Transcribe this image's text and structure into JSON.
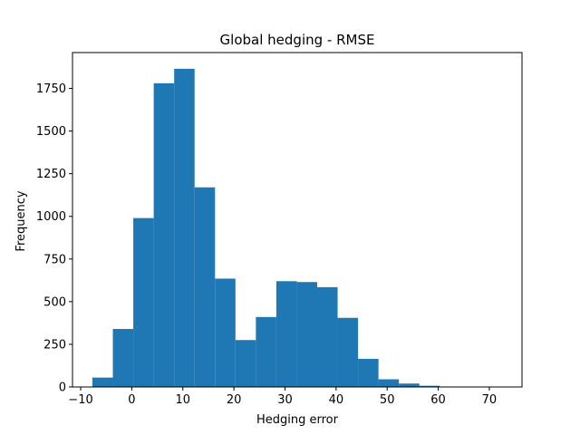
{
  "chart_data": {
    "type": "bar",
    "title": "Global hedging - RMSE",
    "xlabel": "Hedging error",
    "ylabel": "Frequency",
    "xlim": [
      -11.6,
      76.4
    ],
    "ylim": [
      0,
      1960
    ],
    "bin_edges": [
      -7.7,
      -3.7,
      0.3,
      4.3,
      8.3,
      12.3,
      16.3,
      20.3,
      24.3,
      28.3,
      32.3,
      36.3,
      40.3,
      44.3,
      48.3,
      52.3,
      56.3,
      60.3,
      64.3,
      68.3,
      72.3
    ],
    "values": [
      55,
      340,
      990,
      1780,
      1865,
      1170,
      635,
      275,
      410,
      620,
      615,
      585,
      405,
      165,
      45,
      20,
      7,
      2,
      1,
      1
    ],
    "x_ticks": [
      -10,
      0,
      10,
      20,
      30,
      40,
      50,
      60,
      70
    ],
    "x_tick_labels": [
      "−10",
      "0",
      "10",
      "20",
      "30",
      "40",
      "50",
      "60",
      "70"
    ],
    "y_ticks": [
      0,
      250,
      500,
      750,
      1000,
      1250,
      1500,
      1750
    ],
    "y_tick_labels": [
      "0",
      "250",
      "500",
      "750",
      "1000",
      "1250",
      "1500",
      "1750"
    ],
    "color": "#1f77b4",
    "grid": false,
    "legend": "none"
  }
}
